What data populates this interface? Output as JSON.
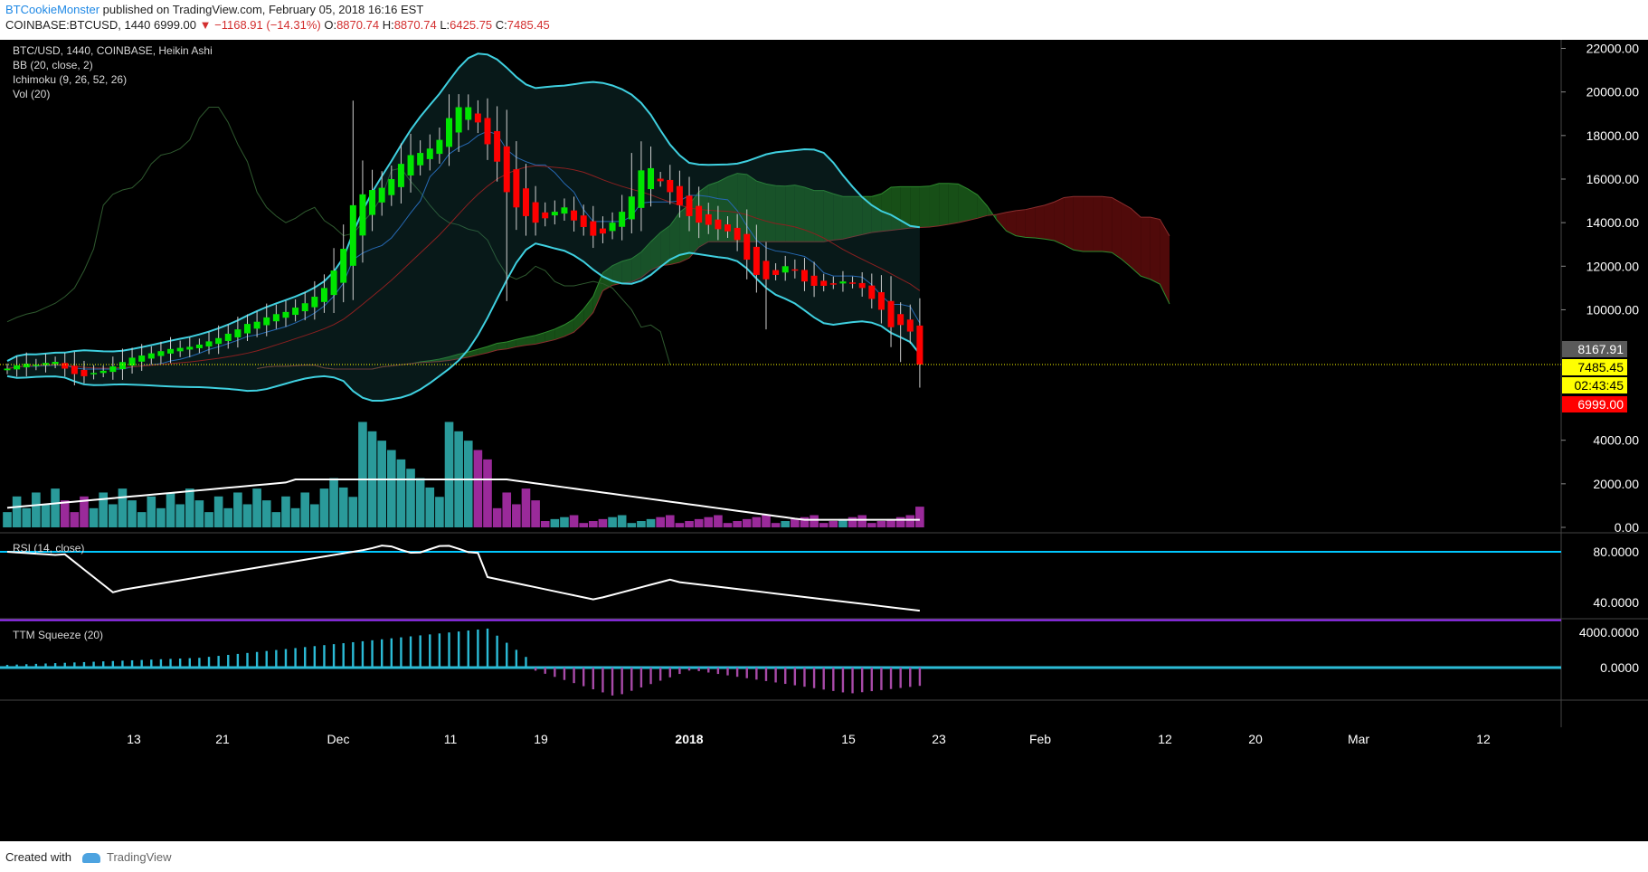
{
  "header": {
    "author": "BTCookieMonster",
    "published_text": "published on TradingView.com, February 05, 2018 16:16 EST",
    "symbol": "COINBASE:BTCUSD, 1440",
    "last": "6999.00",
    "change": "−1168.91 (−14.31%)",
    "o_label": "O:",
    "o": "8870.74",
    "h_label": "H:",
    "h": "8870.74",
    "l_label": "L:",
    "l": "6425.75",
    "c_label": "C:",
    "c": "7485.45"
  },
  "legend": {
    "symbol": "BTC/USD, 1440, COINBASE, Heikin Ashi",
    "bb": "BB (20, close, 2)",
    "ichimoku": "Ichimoku (9, 26, 52, 26)",
    "vol": "Vol (20)",
    "rsi": "RSI (14, close)",
    "ttm": "TTM Squeeze (20)"
  },
  "price_tags": {
    "prev_close": "8167.91",
    "close": "7485.45",
    "countdown": "02:43:45",
    "last": "6999.00"
  },
  "footer": {
    "created_with": "Created with",
    "brand": "TradingView"
  },
  "colors": {
    "background": "#000000",
    "bull": "#00e600",
    "bear": "#ff0000",
    "bollinger": "#3fd0e0",
    "cloud_bull": "#1f6a1f",
    "cloud_bear": "#6b0d0d",
    "volume_up": "#2a9a9a",
    "volume_down": "#9a2a9a",
    "rsi_line": "#ffffff",
    "rsi_upper": "#00c8ff",
    "rsi_lower": "#9b30ff",
    "ttm_pos": "#2bbbd6",
    "ttm_neg": "#a84aa8",
    "current_price": "#ffff00"
  },
  "chart_data": {
    "type": "candlestick",
    "xlabels": [
      "13",
      "21",
      "Dec",
      "11",
      "19",
      "2018",
      "15",
      "23",
      "Feb",
      "12",
      "20",
      "Mar",
      "12"
    ],
    "price_axis": [
      22000,
      20000,
      18000,
      16000,
      14000,
      12000,
      10000,
      4000,
      2000,
      0
    ],
    "price_axis_labels": [
      "22000.00",
      "20000.00",
      "18000.00",
      "16000.00",
      "14000.00",
      "12000.00",
      "10000.00",
      "4000.00",
      "2000.00",
      "0.00"
    ],
    "rsi_axis": [
      80,
      40
    ],
    "rsi_axis_labels": [
      "80.0000",
      "40.0000"
    ],
    "ttm_axis": [
      4000,
      0
    ],
    "ttm_axis_labels": [
      "4000.0000",
      "0.0000"
    ],
    "close_series": [
      7300,
      7450,
      7520,
      7480,
      7560,
      7610,
      7300,
      7050,
      6950,
      7100,
      7200,
      7400,
      7600,
      7800,
      7900,
      8000,
      8100,
      8200,
      8250,
      8300,
      8400,
      8550,
      8700,
      8900,
      9100,
      9350,
      9450,
      9650,
      9800,
      9900,
      10100,
      10300,
      10600,
      11000,
      11800,
      12800,
      14800,
      15300,
      15500,
      15600,
      16000,
      16700,
      17100,
      17200,
      17400,
      17800,
      18800,
      19300,
      19300,
      18600,
      17600,
      16800,
      15400,
      14700,
      14300,
      14000,
      14200,
      14500,
      14700,
      14100,
      13800,
      13400,
      13500,
      14000,
      14500,
      15200,
      16400,
      16500,
      15900,
      15400,
      14800,
      14300,
      14000,
      13900,
      13700,
      13600,
      13200,
      12300,
      11600,
      11400,
      11600,
      12000,
      11800,
      11300,
      11100,
      11100,
      11200,
      11300,
      11200,
      11000,
      10500,
      10000,
      9200,
      9300,
      9000,
      7485
    ]
  }
}
